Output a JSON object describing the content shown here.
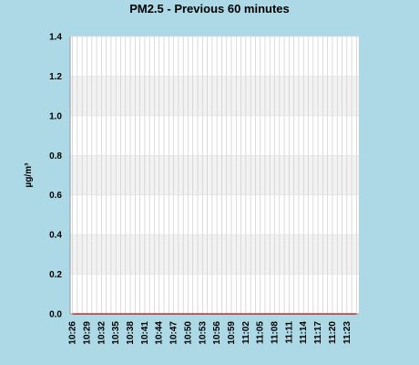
{
  "chart_data": {
    "type": "line",
    "title": "PM2.5 - Previous 60 minutes",
    "ylabel": "µg/m³",
    "xlabel": "",
    "ylim": [
      0,
      1.4
    ],
    "yticks": [
      "0.0",
      "0.2",
      "0.4",
      "0.6",
      "0.8",
      "1.0",
      "1.2",
      "1.4"
    ],
    "x": [
      "10:26",
      "10:27",
      "10:28",
      "10:29",
      "10:30",
      "10:31",
      "10:32",
      "10:33",
      "10:34",
      "10:35",
      "10:36",
      "10:37",
      "10:38",
      "10:39",
      "10:40",
      "10:41",
      "10:42",
      "10:43",
      "10:44",
      "10:45",
      "10:46",
      "10:47",
      "10:48",
      "10:49",
      "10:50",
      "10:51",
      "10:52",
      "10:53",
      "10:54",
      "10:55",
      "10:56",
      "10:57",
      "10:58",
      "10:59",
      "11:00",
      "11:01",
      "11:02",
      "11:03",
      "11:04",
      "11:05",
      "11:06",
      "11:07",
      "11:08",
      "11:09",
      "11:10",
      "11:11",
      "11:12",
      "11:13",
      "11:14",
      "11:15",
      "11:16",
      "11:17",
      "11:18",
      "11:19",
      "11:20",
      "11:21",
      "11:22",
      "11:23",
      "11:24",
      "11:25"
    ],
    "x_tick_labels": [
      "10:26",
      "10:29",
      "10:32",
      "10:35",
      "10:38",
      "10:41",
      "10:44",
      "10:47",
      "10:50",
      "10:53",
      "10:56",
      "10:59",
      "11:02",
      "11:05",
      "11:08",
      "11:11",
      "11:14",
      "11:17",
      "11:20",
      "11:23"
    ],
    "series": [
      {
        "values": [
          0,
          0,
          0,
          0,
          0,
          0,
          0,
          0,
          0,
          0,
          0,
          0,
          0,
          0,
          0,
          0,
          0,
          0,
          0,
          0,
          0,
          0,
          0,
          0,
          0,
          0,
          0,
          0,
          0,
          0,
          0,
          0,
          0,
          0,
          0,
          0,
          0,
          0,
          0,
          0,
          0,
          0,
          0,
          0,
          0,
          0,
          0,
          0,
          0,
          0,
          0,
          0,
          0,
          0,
          0,
          0,
          0,
          0,
          0,
          0
        ],
        "color": "#cc0000"
      }
    ],
    "grid": true,
    "legend": "none",
    "colors": {
      "background": "#add8e6",
      "plot_background": "#ffffff",
      "band": "#f2f2f2",
      "gridline": "#cccccc"
    }
  }
}
